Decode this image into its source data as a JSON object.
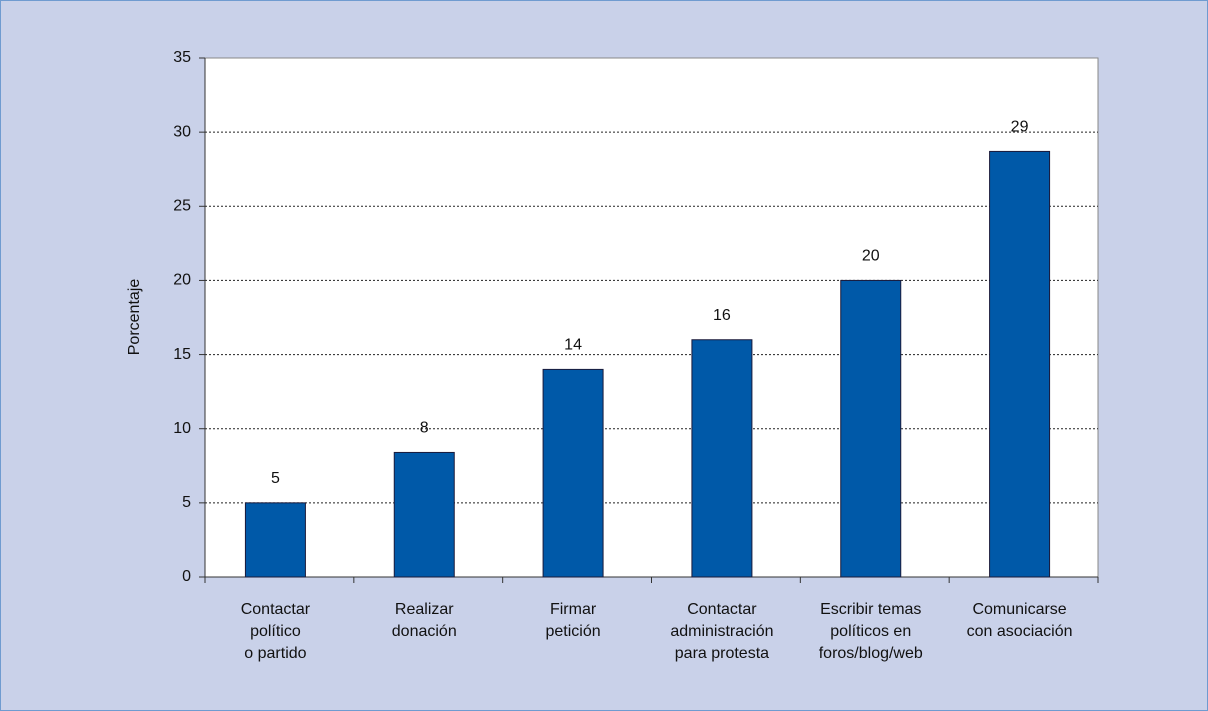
{
  "chart_data": {
    "type": "bar",
    "y_label": "Porcentaje",
    "categories": [
      [
        "Contactar",
        "político",
        "o partido"
      ],
      [
        "Realizar",
        "donación"
      ],
      [
        "Firmar",
        "petición"
      ],
      [
        "Contactar",
        "administración",
        "para protesta"
      ],
      [
        "Escribir temas",
        "políticos en",
        "foros/blog/web"
      ],
      [
        "Comunicarse",
        "con asociación"
      ]
    ],
    "values": [
      5,
      8.4,
      14,
      16,
      20,
      28.7
    ],
    "value_labels": [
      "5",
      "8",
      "14",
      "16",
      "20",
      "29"
    ],
    "color": "#0059a8",
    "ylim": [
      0,
      35
    ],
    "yticks": [
      0,
      5,
      10,
      15,
      20,
      25,
      30,
      35
    ],
    "grid": true
  }
}
